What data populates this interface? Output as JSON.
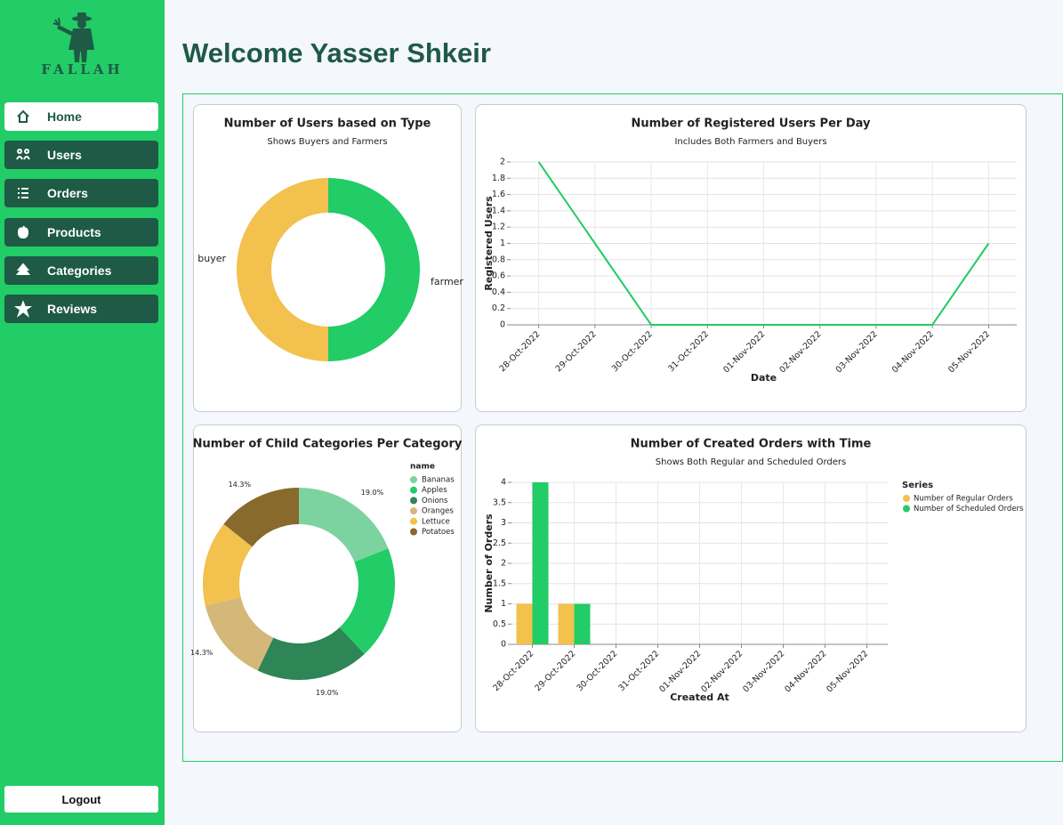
{
  "sidebar": {
    "brand": "FALLAH",
    "nav": [
      "Home",
      "Users",
      "Orders",
      "Products",
      "Categories",
      "Reviews"
    ],
    "logout": "Logout"
  },
  "header": {
    "title": "Welcome Yasser Shkeir"
  },
  "chart_data": [
    {
      "type": "pie",
      "title": "Number of Users based on Type",
      "subtitle": "Shows Buyers and Farmers",
      "categories": [
        "farmer",
        "buyer"
      ],
      "values": [
        50,
        50
      ],
      "colors": [
        "#22cc66",
        "#f2c14e"
      ]
    },
    {
      "type": "line",
      "title": "Number of Registered Users Per Day",
      "subtitle": "Includes Both Farmers and Buyers",
      "categories": [
        "28-Oct-2022",
        "29-Oct-2022",
        "30-Oct-2022",
        "31-Oct-2022",
        "01-Nov-2022",
        "02-Nov-2022",
        "03-Nov-2022",
        "04-Nov-2022",
        "05-Nov-2022"
      ],
      "values": [
        2,
        1,
        0,
        0,
        0,
        0,
        0,
        0,
        1
      ],
      "color": "#22cc66",
      "xlabel": "Date",
      "ylabel": "Registered Users",
      "ylim": [
        0,
        2
      ],
      "yticks": [
        0,
        0.2,
        0.4,
        0.6,
        0.8,
        1,
        1.2,
        1.4,
        1.6,
        1.8,
        2
      ],
      "grid": true
    },
    {
      "type": "pie",
      "title": "Number of Child Categories Per Category",
      "legend_title": "name",
      "categories": [
        "Bananas",
        "Apples",
        "Onions",
        "Oranges",
        "Lettuce",
        "Potatoes"
      ],
      "values": [
        19.0,
        19.0,
        19.0,
        14.3,
        14.3,
        14.3
      ],
      "value_labels": [
        "19.0%",
        null,
        "19.0%",
        "14.3%",
        null,
        "14.3%"
      ],
      "colors": [
        "#7dd3a0",
        "#22cc66",
        "#2e8555",
        "#d4b87a",
        "#f2c14e",
        "#876a2c"
      ]
    },
    {
      "type": "bar",
      "title": "Number of Created Orders with Time",
      "subtitle": "Shows Both Regular and Scheduled Orders",
      "categories": [
        "28-Oct-2022",
        "29-Oct-2022",
        "30-Oct-2022",
        "31-Oct-2022",
        "01-Nov-2022",
        "02-Nov-2022",
        "03-Nov-2022",
        "04-Nov-2022",
        "05-Nov-2022"
      ],
      "legend_title": "Series",
      "series": [
        {
          "name": "Number of Regular Orders",
          "color": "#f2c14e",
          "values": [
            1,
            1,
            0,
            0,
            0,
            0,
            0,
            0,
            0
          ]
        },
        {
          "name": "Number of Scheduled Orders",
          "color": "#22cc66",
          "values": [
            4,
            1,
            0,
            0,
            0,
            0,
            0,
            0,
            0
          ]
        }
      ],
      "xlabel": "Created At",
      "ylabel": "Number of Orders",
      "ylim": [
        0,
        4
      ],
      "yticks": [
        0,
        0.5,
        1,
        1.5,
        2,
        2.5,
        3,
        3.5,
        4
      ],
      "grid": true
    }
  ]
}
